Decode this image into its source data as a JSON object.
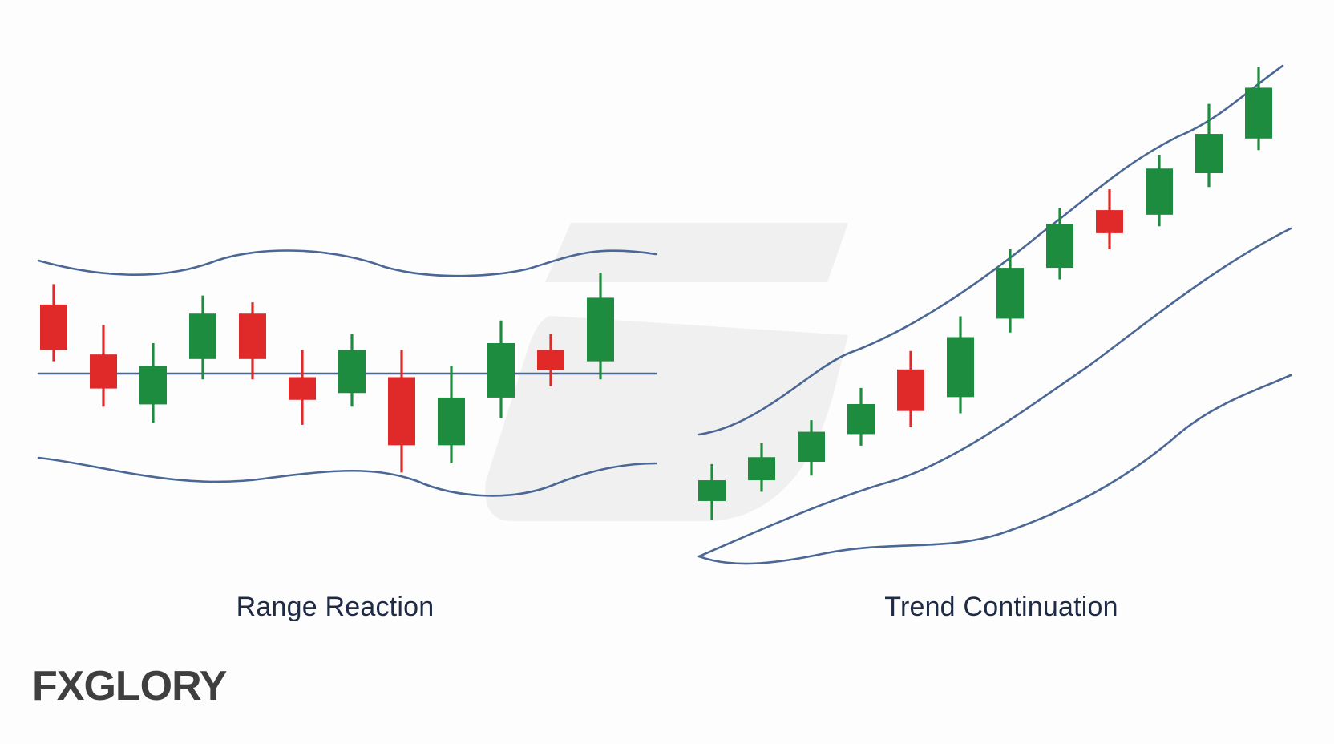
{
  "colors": {
    "bullish": "#1e8c3e",
    "bearish": "#e02a2a",
    "band": "#4a6795",
    "title": "#1f2a44",
    "watermark": "#f0f0f0"
  },
  "logo": {
    "prefix": "FX",
    "accent": "",
    "suffix": "GLORY"
  },
  "chart_data": [
    {
      "type": "candlestick",
      "title": "Range Reaction",
      "description_lines": [
        "upper band",
        "middle line",
        "lower band"
      ],
      "candles": [
        {
          "dir": "bear",
          "open": 70,
          "close": 50,
          "high": 79,
          "low": 45
        },
        {
          "dir": "bear",
          "open": 48,
          "close": 33,
          "high": 61,
          "low": 25
        },
        {
          "dir": "bull",
          "open": 26,
          "close": 43,
          "high": 53,
          "low": 18
        },
        {
          "dir": "bull",
          "open": 46,
          "close": 66,
          "high": 74,
          "low": 37
        },
        {
          "dir": "bear",
          "open": 66,
          "close": 46,
          "high": 71,
          "low": 37
        },
        {
          "dir": "bear",
          "open": 38,
          "close": 28,
          "high": 50,
          "low": 17
        },
        {
          "dir": "bull",
          "open": 31,
          "close": 50,
          "high": 57,
          "low": 25
        },
        {
          "dir": "bear",
          "open": 38,
          "close": 8,
          "high": 50,
          "low": -4
        },
        {
          "dir": "bull",
          "open": 8,
          "close": 29,
          "high": 43,
          "low": 0
        },
        {
          "dir": "bull",
          "open": 29,
          "close": 53,
          "high": 63,
          "low": 20
        },
        {
          "dir": "bear",
          "open": 50,
          "close": 41,
          "high": 57,
          "low": 34
        },
        {
          "dir": "bull",
          "open": 45,
          "close": 73,
          "high": 84,
          "low": 37
        }
      ]
    },
    {
      "type": "candlestick",
      "title": "Trend Continuation",
      "candles": [
        {
          "dir": "bull",
          "open": 8,
          "close": 17,
          "high": 24,
          "low": 0
        },
        {
          "dir": "bull",
          "open": 17,
          "close": 27,
          "high": 33,
          "low": 12
        },
        {
          "dir": "bull",
          "open": 25,
          "close": 38,
          "high": 43,
          "low": 19
        },
        {
          "dir": "bull",
          "open": 37,
          "close": 50,
          "high": 57,
          "low": 32
        },
        {
          "dir": "bear",
          "open": 65,
          "close": 47,
          "high": 73,
          "low": 40
        },
        {
          "dir": "bull",
          "open": 53,
          "close": 79,
          "high": 88,
          "low": 46
        },
        {
          "dir": "bull",
          "open": 87,
          "close": 109,
          "high": 117,
          "low": 81
        },
        {
          "dir": "bull",
          "open": 109,
          "close": 128,
          "high": 135,
          "low": 104
        },
        {
          "dir": "bear",
          "open": 134,
          "close": 124,
          "high": 143,
          "low": 117
        },
        {
          "dir": "bull",
          "open": 132,
          "close": 152,
          "high": 158,
          "low": 127
        },
        {
          "dir": "bull",
          "open": 150,
          "close": 167,
          "high": 180,
          "low": 144
        },
        {
          "dir": "bull",
          "open": 165,
          "close": 187,
          "high": 196,
          "low": 160
        }
      ]
    }
  ]
}
